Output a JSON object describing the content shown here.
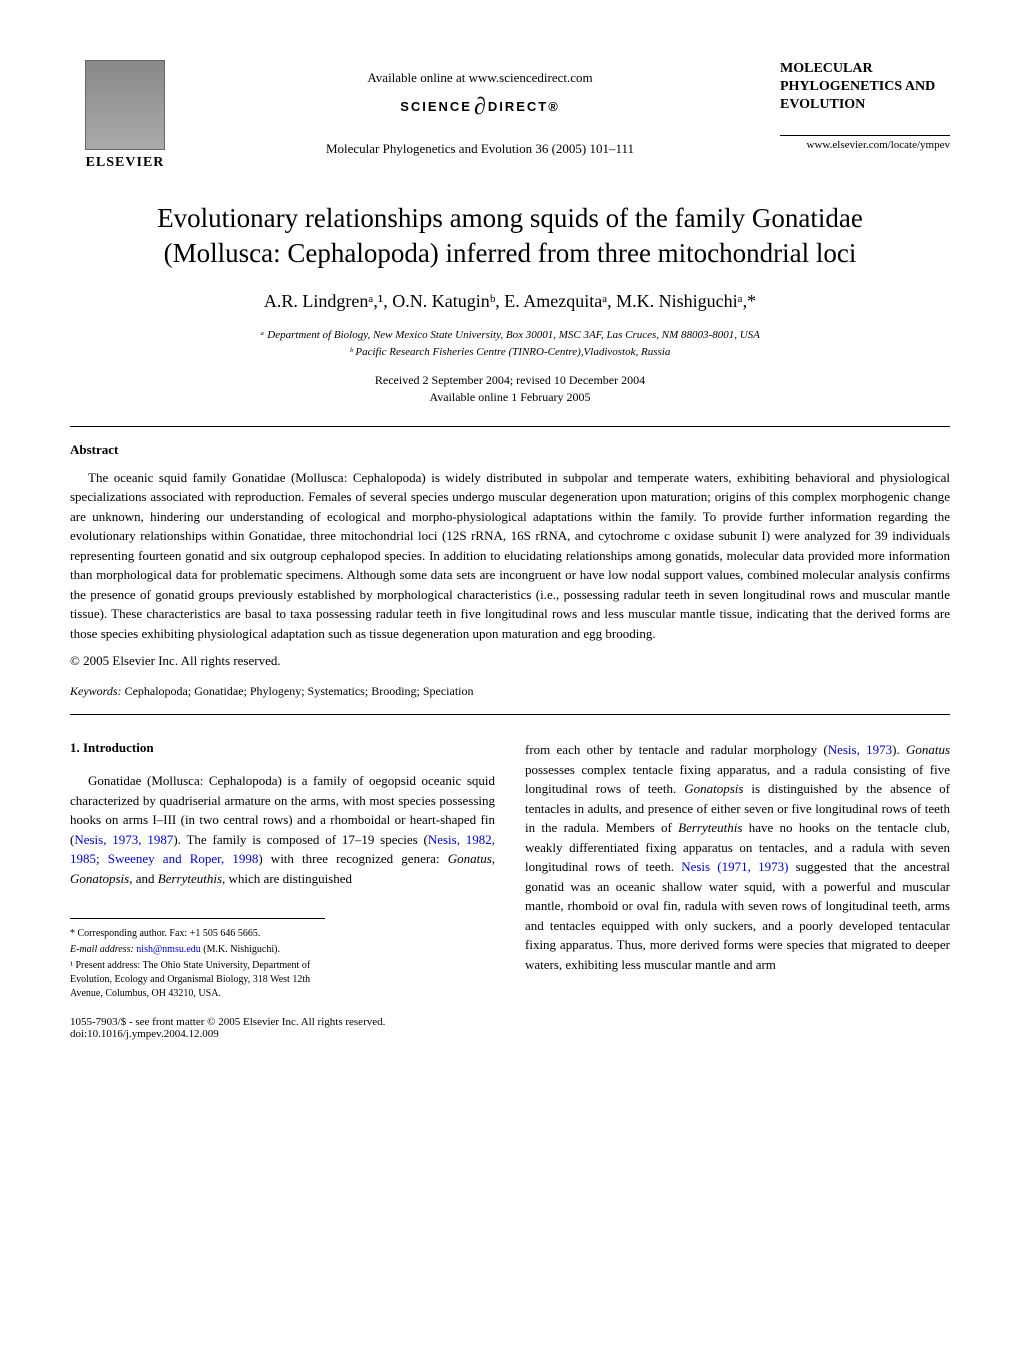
{
  "header": {
    "elsevier_label": "ELSEVIER",
    "available_online": "Available online at www.sciencedirect.com",
    "sciencedirect_prefix": "SCIENCE",
    "sciencedirect_suffix": "DIRECT®",
    "journal_citation": "Molecular Phylogenetics and Evolution 36 (2005) 101–111",
    "journal_title": "MOLECULAR PHYLOGENETICS AND EVOLUTION",
    "journal_url": "www.elsevier.com/locate/ympev"
  },
  "article": {
    "title_line1": "Evolutionary relationships among squids of the family Gonatidae",
    "title_line2": "(Mollusca: Cephalopoda) inferred from three mitochondrial loci",
    "authors": "A.R. Lindgrenᵃ,¹, O.N. Katuginᵇ, E. Amezquitaᵃ, M.K. Nishiguchiᵃ,*",
    "affiliation_a": "ᵃ Department of Biology, New Mexico State University, Box 30001, MSC 3AF, Las Cruces, NM 88003-8001, USA",
    "affiliation_b": "ᵇ Pacific Research Fisheries Centre (TINRO-Centre),Vladivostok, Russia",
    "received": "Received 2 September 2004; revised 10 December 2004",
    "available": "Available online 1 February 2005"
  },
  "abstract": {
    "heading": "Abstract",
    "text": "The oceanic squid family Gonatidae (Mollusca: Cephalopoda) is widely distributed in subpolar and temperate waters, exhibiting behavioral and physiological specializations associated with reproduction. Females of several species undergo muscular degeneration upon maturation; origins of this complex morphogenic change are unknown, hindering our understanding of ecological and morpho-physiological adaptations within the family. To provide further information regarding the evolutionary relationships within Gonatidae, three mitochondrial loci (12S rRNA, 16S rRNA, and cytochrome c oxidase subunit I) were analyzed for 39 individuals representing fourteen gonatid and six outgroup cephalopod species. In addition to elucidating relationships among gonatids, molecular data provided more information than morphological data for problematic specimens. Although some data sets are incongruent or have low nodal support values, combined molecular analysis confirms the presence of gonatid groups previously established by morphological characteristics (i.e., possessing radular teeth in seven longitudinal rows and muscular mantle tissue). These characteristics are basal to taxa possessing radular teeth in five longitudinal rows and less muscular mantle tissue, indicating that the derived forms are those species exhibiting physiological adaptation such as tissue degeneration upon maturation and egg brooding.",
    "copyright": "© 2005 Elsevier Inc. All rights reserved.",
    "keywords_label": "Keywords:",
    "keywords_text": " Cephalopoda; Gonatidae; Phylogeny; Systematics; Brooding; Speciation"
  },
  "body": {
    "intro_heading": "1. Introduction",
    "left_p1_a": "Gonatidae (Mollusca: Cephalopoda) is a family of oegopsid oceanic squid characterized by quadriserial armature on the arms, with most species possessing hooks on arms I–III (in two central rows) and a rhomboidal or heart-shaped fin (",
    "left_p1_link1": "Nesis, 1973, 1987",
    "left_p1_b": "). The family is composed of 17–19 species (",
    "left_p1_link2": "Nesis, 1982, 1985; Sweeney and Roper, 1998",
    "left_p1_c": ") with three recognized genera: ",
    "left_p1_genus1": "Gonatus",
    "left_p1_d": ", ",
    "left_p1_genus2": "Gonatopsis",
    "left_p1_e": ", and ",
    "left_p1_genus3": "Berryteuthis",
    "left_p1_f": ", which are distinguished",
    "right_p1_a": "from each other by tentacle and radular morphology (",
    "right_p1_link1": "Nesis, 1973",
    "right_p1_b": "). ",
    "right_p1_genus1": "Gonatus",
    "right_p1_c": " possesses complex tentacle fixing apparatus, and a radula consisting of five longitudinal rows of teeth. ",
    "right_p1_genus2": "Gonatopsis",
    "right_p1_d": " is distinguished by the absence of tentacles in adults, and presence of either seven or five longitudinal rows of teeth in the radula. Members of ",
    "right_p1_genus3": "Berryteuthis",
    "right_p1_e": " have no hooks on the tentacle club, weakly differentiated fixing apparatus on tentacles, and a radula with seven longitudinal rows of teeth. ",
    "right_p1_link2": "Nesis (1971, 1973)",
    "right_p1_f": " suggested that the ancestral gonatid was an oceanic shallow water squid, with a powerful and muscular mantle, rhomboid or oval fin, radula with seven rows of longitudinal teeth, arms and tentacles equipped with only suckers, and a poorly developed tentacular fixing apparatus. Thus, more derived forms were species that migrated to deeper waters, exhibiting less muscular mantle and arm"
  },
  "footnotes": {
    "corresponding": "* Corresponding author. Fax: +1 505 646 5665.",
    "email_label": "E-mail address: ",
    "email": "nish@nmsu.edu",
    "email_suffix": " (M.K. Nishiguchi).",
    "present_address": "¹ Present address: The Ohio State University, Department of Evolution, Ecology and Organismal Biology, 318 West 12th Avenue, Columbus, OH 43210, USA.",
    "issn": "1055-7903/$ - see front matter © 2005 Elsevier Inc. All rights reserved.",
    "doi": "doi:10.1016/j.ympev.2004.12.009"
  }
}
